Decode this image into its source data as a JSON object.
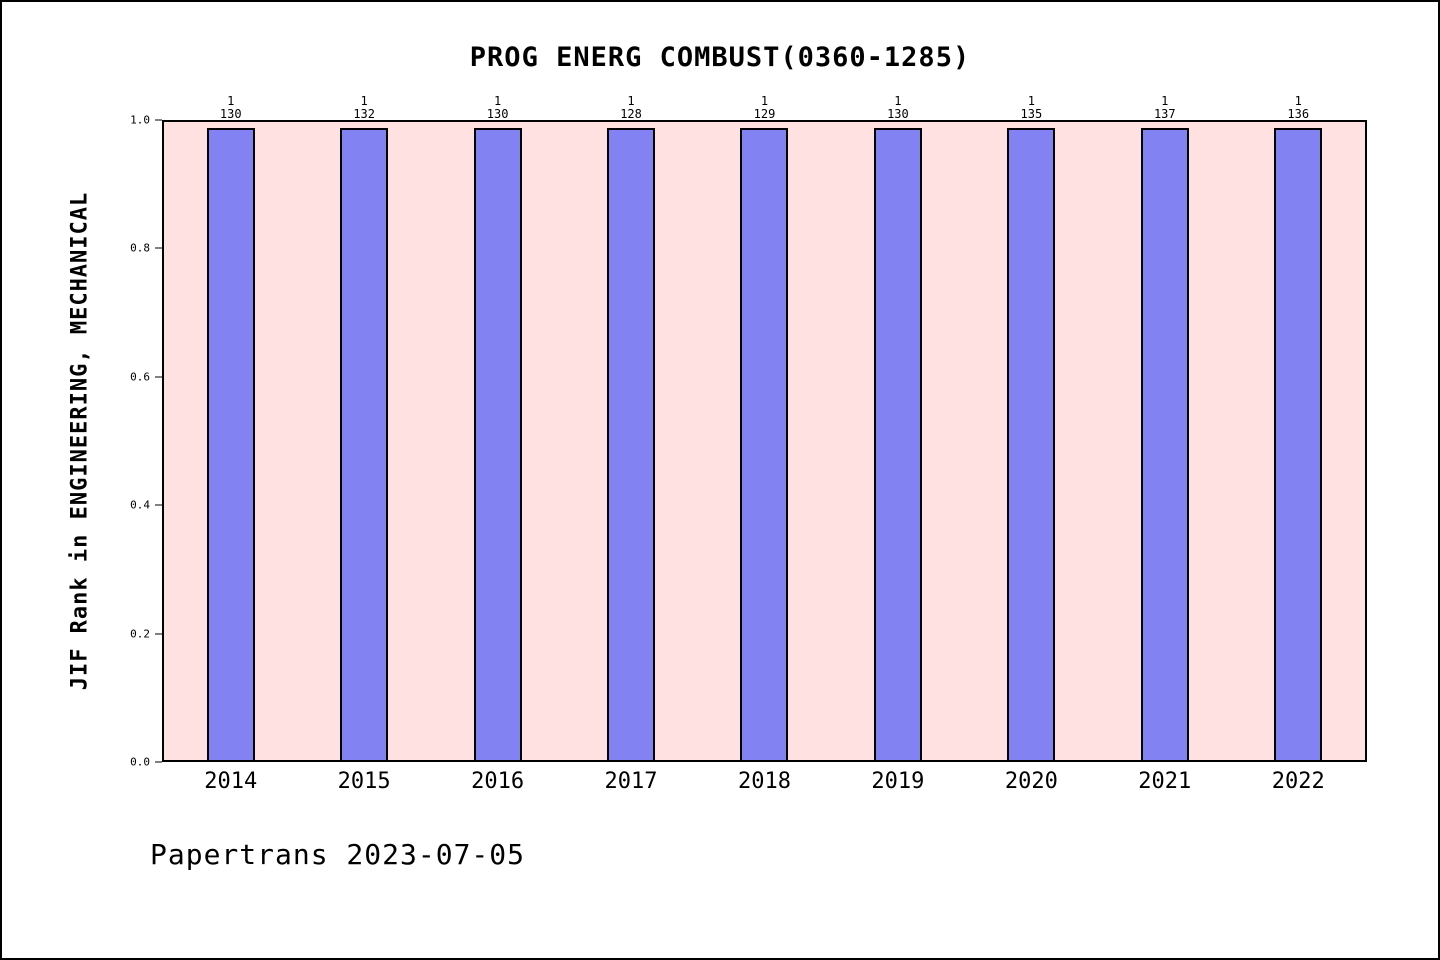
{
  "footer": "Papertrans 2023-07-05",
  "colors": {
    "bar": "#8282f2",
    "bar_edge": "#000000",
    "plot_bg": "#ffe1e1"
  },
  "chart_data": {
    "type": "bar",
    "title": "PROG ENERG COMBUST(0360-1285)",
    "ylabel": "JIF Rank in ENGINEERING, MECHANICAL",
    "xlabel": "",
    "categories": [
      "2014",
      "2015",
      "2016",
      "2017",
      "2018",
      "2019",
      "2020",
      "2021",
      "2022"
    ],
    "series": [
      {
        "name": "rank",
        "values": [
          1,
          1,
          1,
          1,
          1,
          1,
          1,
          1,
          1
        ]
      },
      {
        "name": "total_journals",
        "values": [
          130,
          132,
          130,
          128,
          129,
          130,
          135,
          137,
          136
        ]
      }
    ],
    "bar_heights": [
      0.99,
      0.99,
      0.99,
      0.99,
      0.99,
      0.99,
      0.99,
      0.99,
      0.99
    ],
    "ylim": [
      0.0,
      1.0
    ],
    "yticks": [
      0.0,
      0.2,
      0.4,
      0.6,
      0.8,
      1.0
    ],
    "grid": false,
    "legend": "none"
  }
}
